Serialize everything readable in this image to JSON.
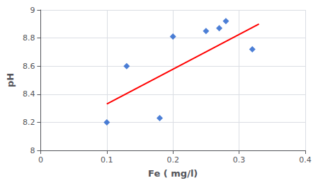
{
  "chart_data": {
    "type": "scatter",
    "xlabel": "Fe ( mg/l)",
    "ylabel": "pH",
    "xlim": [
      0,
      0.4
    ],
    "ylim": [
      8.0,
      9.0
    ],
    "xticks": [
      0,
      0.1,
      0.2,
      0.3,
      0.4
    ],
    "yticks": [
      8,
      8.2,
      8.4,
      8.6,
      8.8,
      9
    ],
    "grid": true,
    "series": [
      {
        "type": "scatter",
        "color": "#1F5FCC",
        "marker": "diamond",
        "x": [
          0.1,
          0.13,
          0.18,
          0.2,
          0.25,
          0.27,
          0.28,
          0.32
        ],
        "values": [
          8.2,
          8.6,
          8.23,
          8.81,
          8.85,
          8.87,
          8.92,
          8.72
        ]
      },
      {
        "type": "line",
        "color": "#FF0000",
        "line_style": "solid",
        "x": [
          0.1,
          0.33
        ],
        "values": [
          8.33,
          8.9
        ]
      }
    ]
  }
}
